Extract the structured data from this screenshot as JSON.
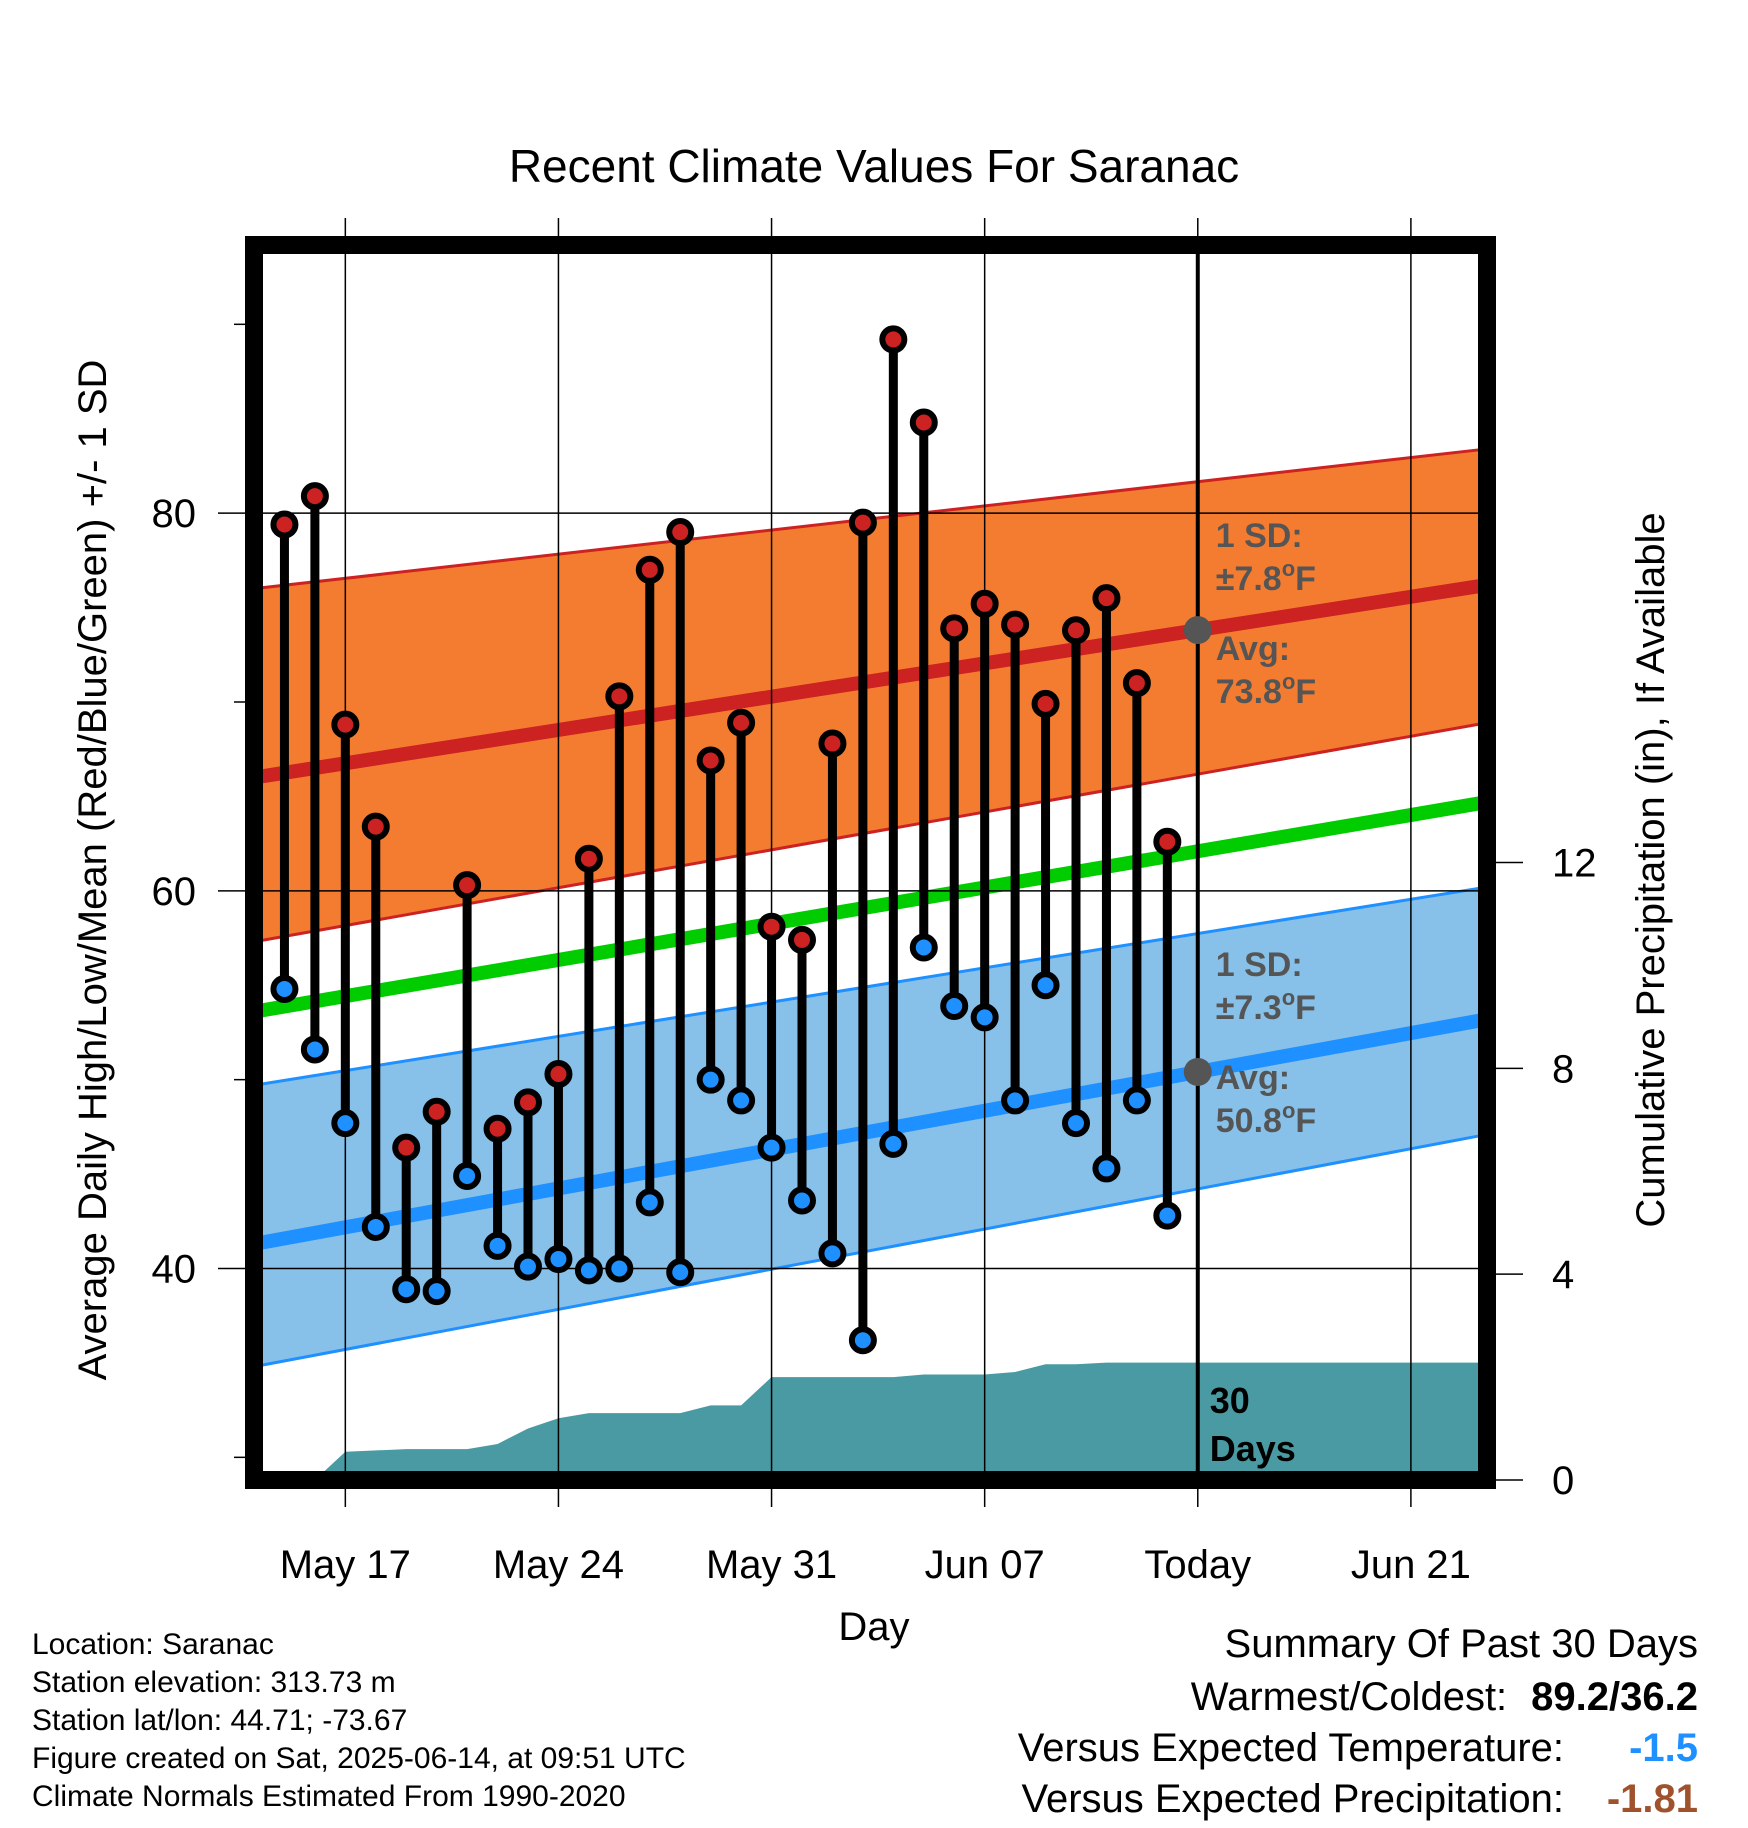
{
  "chart_data": {
    "type": "line",
    "title": "Recent Climate Values For Saranac",
    "xlabel": "Day",
    "ylabel_left": "Average Daily High/Low/Mean (Red/Blue/Green) +/- 1 SD",
    "ylabel_right": "Cumulative Precipitation (in), If Available",
    "x_tick_labels": [
      "May 17",
      "May 24",
      "May 31",
      "Jun 07",
      "Today",
      "Jun 21"
    ],
    "x_tick_days": [
      3,
      10,
      17,
      24,
      31,
      38
    ],
    "y_left_ticks": [
      40,
      60,
      80
    ],
    "y_right_ticks": [
      0,
      4,
      8,
      12
    ],
    "x_range_days": [
      0,
      40.5
    ],
    "y_left_range": [
      28.8,
      94.2
    ],
    "y_right_range": [
      0,
      24
    ],
    "grid": true,
    "days_label": [
      "30",
      "Days"
    ],
    "normals": {
      "high_mean": {
        "start": 66.0,
        "end": 76.2,
        "color": "#cc2222"
      },
      "high_band": {
        "start_low": 57.3,
        "start_high": 76.0,
        "end_low": 68.9,
        "end_high": 83.4,
        "color": "#f47c30"
      },
      "mean": {
        "start": 53.6,
        "end": 64.7,
        "color": "#00cc00"
      },
      "low_mean": {
        "start": 41.3,
        "end": 53.2,
        "color": "#1e90ff"
      },
      "low_band": {
        "start_low": 34.8,
        "start_high": 49.7,
        "end_low": 47.1,
        "end_high": 60.2,
        "color": "#87c0e8"
      }
    },
    "annotations": {
      "high_sd": "1 SD:",
      "high_sd_value": "±7.8",
      "high_avg": "Avg:",
      "high_avg_value": "73.8",
      "low_sd": "1 SD:",
      "low_sd_value": "±7.3",
      "low_avg": "Avg:",
      "low_avg_value": "50.8",
      "unit_suffix": "F",
      "degree_symbol": "o"
    },
    "daily": {
      "day_index": [
        1,
        2,
        3,
        4,
        5,
        6,
        7,
        8,
        9,
        10,
        11,
        12,
        13,
        14,
        15,
        16,
        17,
        18,
        19,
        20,
        21,
        22,
        23,
        24,
        25,
        26,
        27,
        28,
        29,
        30
      ],
      "high": [
        79.4,
        80.9,
        68.8,
        63.4,
        46.4,
        48.3,
        60.3,
        47.4,
        48.8,
        50.3,
        61.7,
        70.3,
        77.0,
        79.0,
        66.9,
        68.9,
        58.1,
        57.4,
        67.8,
        79.5,
        89.2,
        84.8,
        73.9,
        75.2,
        74.1,
        69.9,
        73.8,
        75.5,
        71.0,
        62.6
      ],
      "low": [
        54.8,
        51.6,
        47.7,
        42.2,
        38.9,
        38.8,
        44.9,
        41.2,
        40.1,
        40.5,
        39.9,
        40.0,
        43.5,
        39.8,
        50.0,
        48.9,
        46.4,
        43.6,
        40.8,
        36.2,
        46.6,
        57.0,
        53.9,
        53.3,
        48.9,
        55.0,
        47.7,
        45.3,
        48.9,
        42.8
      ],
      "high_color": "#cc2222",
      "low_color": "#1e90ff"
    },
    "precipitation": {
      "color": "#4a9aa3",
      "day_index": [
        1,
        2,
        3,
        5,
        7,
        8,
        9,
        10,
        11,
        13,
        14,
        15,
        16,
        17,
        18,
        20,
        21,
        22,
        23,
        24,
        25,
        26,
        27,
        28,
        29,
        30,
        40.5
      ],
      "cumulative": [
        0.0,
        0.0,
        0.55,
        0.6,
        0.6,
        0.7,
        1.0,
        1.2,
        1.3,
        1.3,
        1.3,
        1.45,
        1.45,
        2.0,
        2.0,
        2.0,
        2.0,
        2.05,
        2.05,
        2.05,
        2.1,
        2.25,
        2.25,
        2.28,
        2.28,
        2.28,
        2.28
      ]
    }
  },
  "info": {
    "location": "Location: Saranac",
    "elevation": "Station elevation: 313.73 m",
    "latlon": "Station lat/lon: 44.71; -73.67",
    "created": "Figure created on Sat, 2025-06-14, at 09:51 UTC",
    "normals": "Climate Normals Estimated From 1990-2020"
  },
  "summary": {
    "title": "Summary Of Past 30 Days",
    "warm_cold_label": "Warmest/Coldest:",
    "warm_cold_value": "89.2/36.2",
    "temp_label": "Versus Expected Temperature:",
    "temp_value": "-1.5",
    "temp_color": "#1e90ff",
    "precip_label": "Versus Expected Precipitation:",
    "precip_value": "-1.81",
    "precip_color": "#a0522d"
  }
}
